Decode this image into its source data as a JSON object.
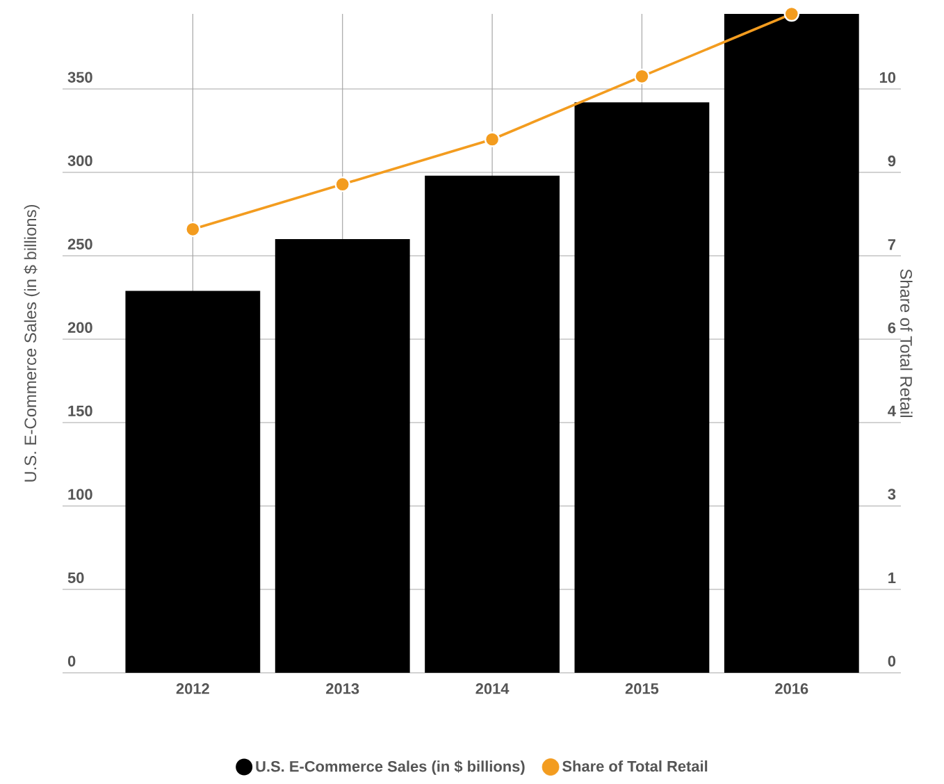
{
  "chart_data": {
    "type": "bar",
    "categories": [
      "2012",
      "2013",
      "2014",
      "2015",
      "2016"
    ],
    "ylabel": "U.S. E-Commerce Sales (in $ billions)",
    "y2label": "Share of Total Retail",
    "ylim": [
      0,
      395
    ],
    "yticks": [
      0,
      50,
      100,
      150,
      200,
      250,
      300,
      350
    ],
    "y2lim": [
      0,
      11.29
    ],
    "y2ticks": [
      0,
      {
        "value": 1.43,
        "label": "1"
      },
      {
        "value": 2.86,
        "label": "3"
      },
      {
        "value": 4.29,
        "label": "4"
      },
      {
        "value": 5.71,
        "label": "6"
      },
      {
        "value": 7.14,
        "label": "7"
      },
      {
        "value": 8.57,
        "label": "9"
      },
      10
    ],
    "grid": true,
    "legend": "bottom",
    "series": [
      {
        "name": "U.S. E-Commerce Sales (in $ billions)",
        "color": "#000000",
        "values": [
          229,
          260,
          298,
          342,
          395
        ]
      },
      {
        "name": "Share of Total Retail",
        "type": "line",
        "axis": "y2",
        "color": "#f39c1f",
        "marker": "circle",
        "values": [
          7.6,
          8.37,
          9.14,
          10.22,
          11.29
        ]
      }
    ]
  }
}
